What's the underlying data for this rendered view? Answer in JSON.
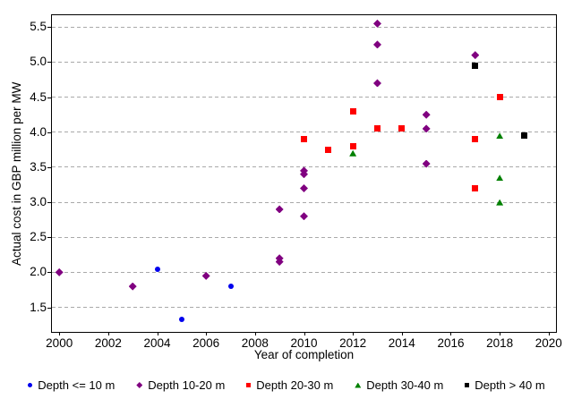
{
  "chart_data": {
    "type": "scatter",
    "title": "",
    "xlabel": "Year of completion",
    "ylabel": "Actual cost in GBP million per MW",
    "xlim": [
      1999.7,
      2020.3
    ],
    "ylim": [
      1.15,
      5.67
    ],
    "x_ticks": [
      2000,
      2002,
      2004,
      2006,
      2008,
      2010,
      2012,
      2014,
      2016,
      2018,
      2020
    ],
    "y_ticks": [
      1.5,
      2.0,
      2.5,
      3.0,
      3.5,
      4.0,
      4.5,
      5.0,
      5.5
    ],
    "y_tick_labels": [
      "1.5",
      "2.0",
      "2.5",
      "3.0",
      "3.5",
      "4.0",
      "4.5",
      "5.0",
      "5.5"
    ],
    "grid": "horizontal-dashed",
    "grid_color": "#a9a9a9",
    "axis_color": "#000000",
    "legend_position": "bottom",
    "series": [
      {
        "name": "Depth <= 10 m",
        "marker": "circle",
        "color": "#0000ee",
        "points": [
          [
            2004,
            2.05
          ],
          [
            2005,
            1.33
          ],
          [
            2007,
            1.8
          ]
        ]
      },
      {
        "name": "Depth 10-20 m",
        "marker": "diamond",
        "color": "#800080",
        "points": [
          [
            2000,
            2.0
          ],
          [
            2003,
            1.8
          ],
          [
            2006,
            1.95
          ],
          [
            2009,
            2.9
          ],
          [
            2009,
            2.2
          ],
          [
            2009,
            2.15
          ],
          [
            2010,
            3.45
          ],
          [
            2010,
            3.4
          ],
          [
            2010,
            3.2
          ],
          [
            2010,
            2.8
          ],
          [
            2013,
            5.55
          ],
          [
            2013,
            5.25
          ],
          [
            2013,
            4.7
          ],
          [
            2015,
            4.25
          ],
          [
            2015,
            4.05
          ],
          [
            2015,
            3.55
          ],
          [
            2017,
            5.1
          ]
        ]
      },
      {
        "name": "Depth 20-30 m",
        "marker": "square",
        "color": "#ff0000",
        "points": [
          [
            2010,
            3.9
          ],
          [
            2011,
            3.75
          ],
          [
            2012,
            4.3
          ],
          [
            2012,
            3.8
          ],
          [
            2013,
            4.05
          ],
          [
            2014,
            4.05
          ],
          [
            2017,
            3.9
          ],
          [
            2017,
            3.2
          ],
          [
            2018,
            4.5
          ]
        ]
      },
      {
        "name": "Depth 30-40 m",
        "marker": "triangle",
        "color": "#008000",
        "points": [
          [
            2012,
            3.7
          ],
          [
            2018,
            3.95
          ],
          [
            2018,
            3.35
          ],
          [
            2018,
            3.0
          ]
        ]
      },
      {
        "name": "Depth > 40 m",
        "marker": "square",
        "color": "#000000",
        "points": [
          [
            2017,
            4.95
          ],
          [
            2019,
            3.95
          ]
        ]
      }
    ]
  }
}
